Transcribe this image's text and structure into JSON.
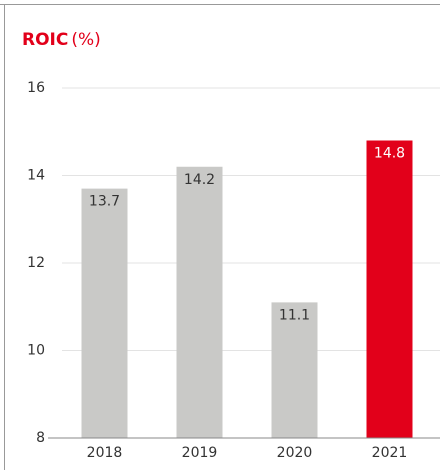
{
  "chart_data": {
    "type": "bar",
    "title": "ROIC",
    "unit": "(%)",
    "categories": [
      "2018",
      "2019",
      "2020",
      "2021"
    ],
    "values": [
      13.7,
      14.2,
      11.1,
      14.8
    ],
    "colors": [
      "#c9c9c7",
      "#c9c9c7",
      "#c9c9c7",
      "#e2001a"
    ],
    "ylim": [
      8,
      16
    ],
    "yticks": [
      8,
      10,
      12,
      14,
      16
    ],
    "grid": true
  }
}
